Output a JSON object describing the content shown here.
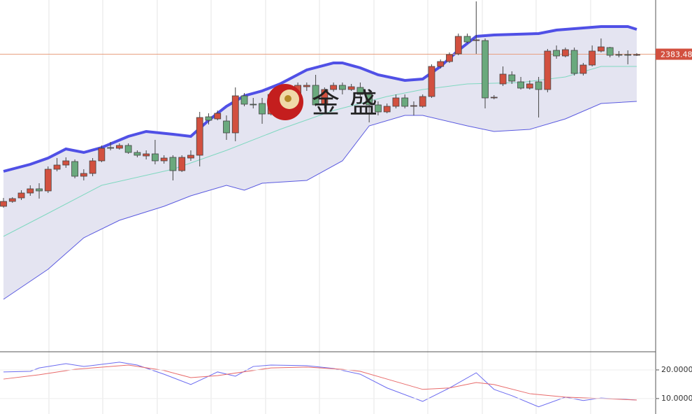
{
  "chart_data": [
    {
      "type": "candlestick",
      "watermark": "金盛",
      "ylim": [
        1958,
        2461
      ],
      "last_price": {
        "value": 2383.48,
        "label": "2383.480"
      },
      "up_color": "#d2503f",
      "down_color": "#6aa97d",
      "open": [
        2166,
        2173,
        2178,
        2185,
        2191,
        2188,
        2219,
        2225,
        2230,
        2209,
        2213,
        2231,
        2250,
        2249,
        2253,
        2243,
        2238,
        2241,
        2231,
        2236,
        2217,
        2235,
        2239,
        2294,
        2291,
        2288,
        2271,
        2324,
        2312,
        2313,
        2298,
        2326,
        2333,
        2323,
        2337,
        2339,
        2311,
        2333,
        2339,
        2333,
        2336,
        2326,
        2311,
        2301,
        2309,
        2321,
        2309,
        2309,
        2323,
        2366,
        2373,
        2384,
        2409,
        2403,
        2403,
        2321,
        2341,
        2354,
        2344,
        2335,
        2344,
        2333,
        2389,
        2381,
        2389,
        2356,
        2368,
        2388,
        2393,
        2383,
        2383,
        2382
      ],
      "high": [
        2178,
        2179,
        2189,
        2196,
        2199,
        2223,
        2235,
        2236,
        2233,
        2219,
        2235,
        2253,
        2258,
        2256,
        2256,
        2246,
        2246,
        2261,
        2239,
        2239,
        2239,
        2246,
        2301,
        2299,
        2303,
        2296,
        2336,
        2328,
        2321,
        2321,
        2331,
        2331,
        2336,
        2343,
        2343,
        2354,
        2336,
        2343,
        2343,
        2341,
        2343,
        2331,
        2316,
        2313,
        2326,
        2326,
        2316,
        2326,
        2369,
        2376,
        2386,
        2413,
        2413,
        2459,
        2406,
        2325,
        2366,
        2359,
        2351,
        2346,
        2351,
        2391,
        2396,
        2393,
        2393,
        2371,
        2396,
        2406,
        2394,
        2388,
        2389,
        2385
      ],
      "low": [
        2164,
        2171,
        2175,
        2181,
        2177,
        2185,
        2216,
        2221,
        2206,
        2203,
        2209,
        2229,
        2246,
        2247,
        2241,
        2236,
        2233,
        2226,
        2227,
        2203,
        2215,
        2231,
        2223,
        2283,
        2289,
        2261,
        2259,
        2309,
        2306,
        2284,
        2296,
        2321,
        2324,
        2319,
        2331,
        2309,
        2306,
        2330,
        2326,
        2331,
        2321,
        2286,
        2296,
        2299,
        2306,
        2306,
        2296,
        2307,
        2321,
        2363,
        2371,
        2382,
        2399,
        2384,
        2306,
        2319,
        2338,
        2341,
        2333,
        2333,
        2293,
        2329,
        2377,
        2379,
        2353,
        2353,
        2366,
        2386,
        2379,
        2379,
        2369,
        2381
      ],
      "close": [
        2173,
        2177,
        2185,
        2191,
        2188,
        2219,
        2225,
        2231,
        2209,
        2213,
        2231,
        2249,
        2249,
        2253,
        2243,
        2239,
        2241,
        2231,
        2235,
        2217,
        2236,
        2239,
        2293,
        2289,
        2299,
        2271,
        2324,
        2312,
        2311,
        2298,
        2326,
        2323,
        2328,
        2339,
        2339,
        2311,
        2333,
        2339,
        2333,
        2337,
        2326,
        2311,
        2301,
        2309,
        2321,
        2309,
        2310,
        2323,
        2366,
        2373,
        2383,
        2409,
        2401,
        2404,
        2321,
        2322,
        2355,
        2345,
        2335,
        2341,
        2333,
        2388,
        2381,
        2390,
        2356,
        2368,
        2388,
        2394,
        2382,
        2382,
        2382,
        2383
      ],
      "upper_band": {
        "color": "#5050e6",
        "x": [
          0,
          3,
          5,
          7,
          9,
          11,
          14,
          16,
          19,
          21,
          23,
          25,
          27,
          29,
          31,
          34,
          37,
          38,
          40,
          42,
          45,
          47,
          49,
          51,
          53,
          55,
          60,
          62,
          67,
          70,
          71
        ],
        "values": [
          2216,
          2226,
          2235,
          2248,
          2243,
          2250,
          2266,
          2273,
          2269,
          2266,
          2289,
          2309,
          2324,
          2331,
          2341,
          2361,
          2371,
          2371,
          2364,
          2354,
          2346,
          2348,
          2366,
          2389,
          2409,
          2411,
          2413,
          2418,
          2423,
          2423,
          2419
        ]
      },
      "middle_band": {
        "color": "#7fd8c0",
        "x": [
          0,
          5,
          11,
          19,
          25,
          31,
          37,
          43,
          47,
          52,
          58,
          63,
          67,
          71
        ],
        "values": [
          2123,
          2156,
          2196,
          2219,
          2246,
          2276,
          2303,
          2323,
          2333,
          2341,
          2343,
          2351,
          2366,
          2366
        ]
      },
      "lower_band": {
        "color": "#5a5ae0",
        "fill": "#e4e4f1",
        "x": [
          0,
          5,
          9,
          13,
          18,
          21,
          25,
          27,
          29,
          34,
          38,
          41,
          45,
          47,
          52,
          55,
          59,
          63,
          67,
          71
        ],
        "values": [
          2033,
          2076,
          2121,
          2146,
          2166,
          2181,
          2196,
          2189,
          2199,
          2203,
          2231,
          2281,
          2296,
          2296,
          2281,
          2273,
          2276,
          2291,
          2313,
          2316
        ]
      }
    },
    {
      "type": "line",
      "ylim": [
        4.6,
        26.1
      ],
      "yticks": [
        {
          "value": 20,
          "label": "20.0000"
        },
        {
          "value": 10,
          "label": "10.0000"
        }
      ],
      "series": [
        {
          "color": "#6b6bf0",
          "x": [
            0,
            3,
            4,
            7,
            9,
            13,
            15,
            18,
            21,
            23,
            24,
            26,
            28,
            30,
            34,
            37,
            40,
            43,
            47,
            50,
            53,
            55,
            57,
            60,
            63,
            65,
            67,
            71
          ],
          "values": [
            19.3,
            19.5,
            20.7,
            22.2,
            21.2,
            22.7,
            21.7,
            18.5,
            14.9,
            17.8,
            19.3,
            17.8,
            21.2,
            21.7,
            21.5,
            20.5,
            18.5,
            13.7,
            9.0,
            13.7,
            19.0,
            13.2,
            11.0,
            7.1,
            10.5,
            9.3,
            10.2,
            9.5
          ]
        },
        {
          "color": "#e86a6a",
          "x": [
            0,
            4,
            8,
            14,
            18,
            21,
            24,
            30,
            34,
            38,
            40,
            43,
            47,
            50,
            53,
            55,
            59,
            63,
            67,
            71
          ],
          "values": [
            16.8,
            18.3,
            20.2,
            21.7,
            19.8,
            17.3,
            18.0,
            20.7,
            21.0,
            20.2,
            19.5,
            16.8,
            13.2,
            13.7,
            15.6,
            14.9,
            11.7,
            10.5,
            10.0,
            9.5
          ]
        }
      ]
    }
  ]
}
